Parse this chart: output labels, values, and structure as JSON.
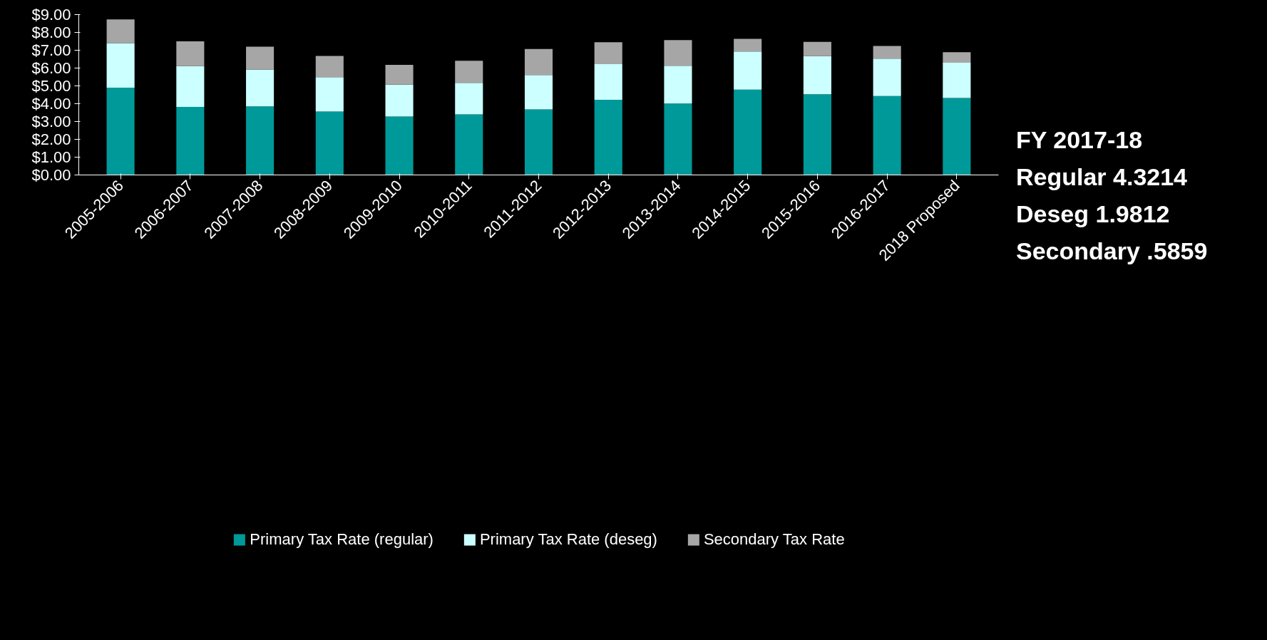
{
  "chart_data": {
    "type": "bar",
    "stacked": true,
    "categories": [
      "2005-2006",
      "2006-2007",
      "2007-2008",
      "2008-2009",
      "2009-2010",
      "2010-2011",
      "2011-2012",
      "2012-2013",
      "2013-2014",
      "2014-2015",
      "2015-2016",
      "2016-2017",
      "2018 Proposed"
    ],
    "series": [
      {
        "name": "Primary Tax Rate (regular)",
        "color": "#009999",
        "values": [
          4.9,
          3.82,
          3.85,
          3.56,
          3.28,
          3.4,
          3.68,
          4.22,
          4.01,
          4.79,
          4.53,
          4.43,
          4.32
        ]
      },
      {
        "name": "Primary Tax Rate (deseg)",
        "color": "#ccffff",
        "values": [
          2.5,
          2.29,
          2.07,
          1.93,
          1.79,
          1.77,
          1.93,
          2.0,
          2.12,
          2.14,
          2.14,
          2.1,
          1.98
        ]
      },
      {
        "name": "Secondary Tax Rate",
        "color": "#a6a6a6",
        "values": [
          1.33,
          1.39,
          1.28,
          1.19,
          1.11,
          1.24,
          1.46,
          1.23,
          1.44,
          0.71,
          0.8,
          0.71,
          0.59
        ]
      }
    ],
    "ylim": [
      0,
      9
    ],
    "yticks": [
      {
        "value": 0,
        "label": "$0.00"
      },
      {
        "value": 1,
        "label": "$1.00"
      },
      {
        "value": 2,
        "label": "$2.00"
      },
      {
        "value": 3,
        "label": "$3.00"
      },
      {
        "value": 4,
        "label": "$4.00"
      },
      {
        "value": 5,
        "label": "$5.00"
      },
      {
        "value": 6,
        "label": "$6.00"
      },
      {
        "value": 7,
        "label": "$7.00"
      },
      {
        "value": 8,
        "label": "$8.00"
      },
      {
        "value": 9,
        "label": "$9.00"
      }
    ],
    "grid": false,
    "legend": "bottom",
    "annotations": [
      "FY 2017-18",
      "Regular 4.3214",
      "Deseg 1.9812",
      "Secondary .5859"
    ]
  }
}
